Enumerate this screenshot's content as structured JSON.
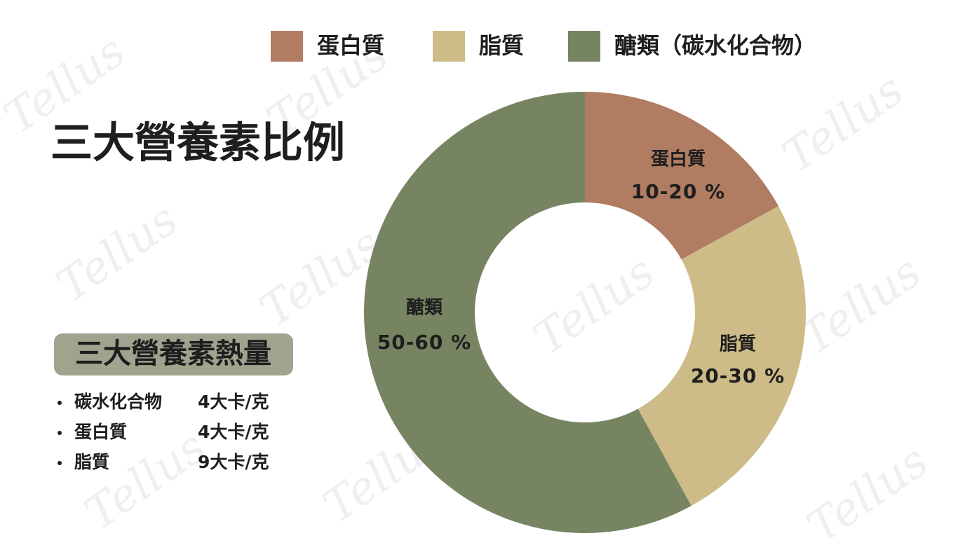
{
  "chart_data": {
    "type": "pie",
    "title": "三大營養素比例",
    "categories": [
      "蛋白質",
      "脂質",
      "醣類"
    ],
    "values": [
      17,
      25,
      58
    ],
    "slice_labels": [
      "10-20 %",
      "20-30 %",
      "50-60 %"
    ],
    "colors": [
      "#b07c62",
      "#cdbc88",
      "#778462"
    ],
    "legend_labels": [
      "蛋白質",
      "脂質",
      "醣類（碳水化合物）"
    ],
    "donut": true
  },
  "calorie_box": {
    "title": "三大營養素熱量",
    "rows": [
      [
        "碳水化合物",
        "4大卡/克"
      ],
      [
        "蛋白質",
        "4大卡/克"
      ],
      [
        "脂質",
        "9大卡/克"
      ]
    ]
  },
  "watermark": "Tellus"
}
